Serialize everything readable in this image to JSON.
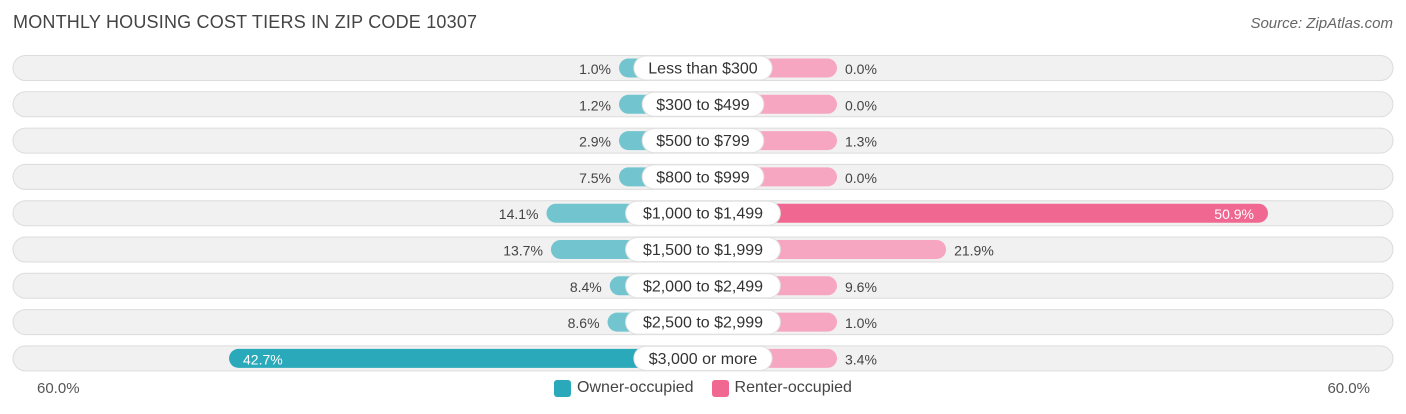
{
  "header": {
    "title": "MONTHLY HOUSING COST TIERS IN ZIP CODE 10307",
    "source": "Source: ZipAtlas.com"
  },
  "axis": {
    "left_label": "60.0%",
    "right_label": "60.0%"
  },
  "legend": {
    "owner_label": "Owner-occupied",
    "renter_label": "Renter-occupied"
  },
  "colors": {
    "owner": "#72c5cf",
    "owner_strong": "#2aa9ba",
    "renter": "#f7a6c1",
    "renter_strong": "#f06891",
    "row_bg": "#f1f1f1",
    "row_border": "#dcdcdc"
  },
  "chart_data": {
    "type": "bar",
    "orientation": "diverging-horizontal",
    "title": "MONTHLY HOUSING COST TIERS IN ZIP CODE 10307",
    "xlim": [
      -60,
      60
    ],
    "categories": [
      "Less than $300",
      "$300 to $499",
      "$500 to $799",
      "$800 to $999",
      "$1,000 to $1,499",
      "$1,500 to $1,999",
      "$2,000 to $2,499",
      "$2,500 to $2,999",
      "$3,000 or more"
    ],
    "series": [
      {
        "name": "Owner-occupied",
        "values": [
          1.0,
          1.2,
          2.9,
          7.5,
          14.1,
          13.7,
          8.4,
          8.6,
          42.7
        ],
        "labels": [
          "1.0%",
          "1.2%",
          "2.9%",
          "7.5%",
          "14.1%",
          "13.7%",
          "8.4%",
          "8.6%",
          "42.7%"
        ]
      },
      {
        "name": "Renter-occupied",
        "values": [
          0.0,
          0.0,
          1.3,
          0.0,
          50.9,
          21.9,
          9.6,
          1.0,
          3.4
        ],
        "labels": [
          "0.0%",
          "0.0%",
          "1.3%",
          "0.0%",
          "50.9%",
          "21.9%",
          "9.6%",
          "1.0%",
          "3.4%"
        ]
      }
    ],
    "legend_position": "bottom-center"
  }
}
